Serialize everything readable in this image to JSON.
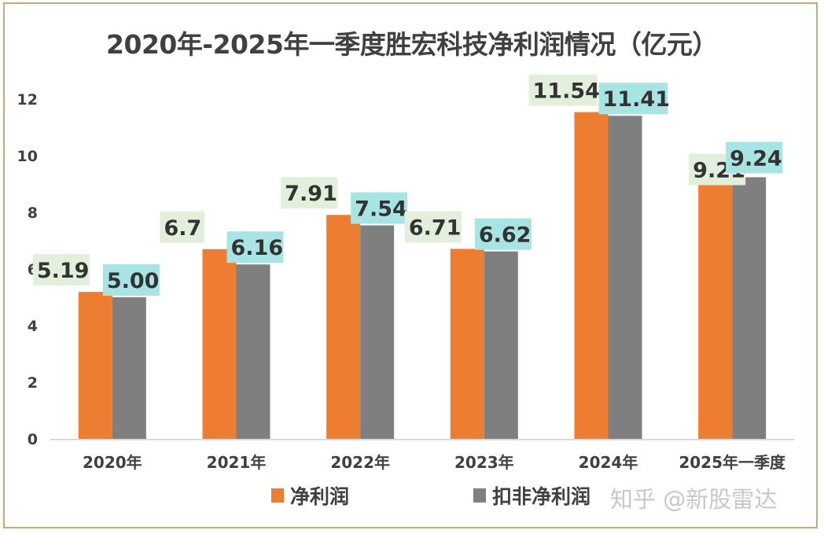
{
  "chart_data": {
    "type": "bar",
    "title": "2020年-2025年一季度胜宏科技净利润情况（亿元）",
    "xlabel": "",
    "ylabel": "",
    "categories": [
      "2020年",
      "2021年",
      "2022年",
      "2023年",
      "2024年",
      "2025年一季度"
    ],
    "series": [
      {
        "name": "净利润",
        "color": "#ed7d31",
        "label_bg": "#e2efda",
        "values": [
          5.19,
          6.7,
          7.91,
          6.71,
          11.54,
          9.21
        ],
        "labels": [
          "5.19",
          "6.7",
          "7.91",
          "6.71",
          "11.54",
          "9.21"
        ]
      },
      {
        "name": "扣非净利润",
        "color": "#7f7f7f",
        "label_bg": "#a9e4e4",
        "values": [
          5.0,
          6.16,
          7.54,
          6.62,
          11.41,
          9.24
        ],
        "labels": [
          "5.00",
          "6.16",
          "7.54",
          "6.62",
          "11.41",
          "9.24"
        ]
      }
    ],
    "ylim": [
      0,
      12
    ],
    "yticks": [
      0,
      2,
      4,
      6,
      8,
      10,
      12
    ],
    "grid": false,
    "legend_position": "bottom"
  },
  "legend": {
    "items": [
      {
        "label": "净利润",
        "color": "#ed7d31"
      },
      {
        "label": "扣非净利润",
        "color": "#7f7f7f"
      }
    ]
  },
  "watermark": "知乎 @新股雷达"
}
